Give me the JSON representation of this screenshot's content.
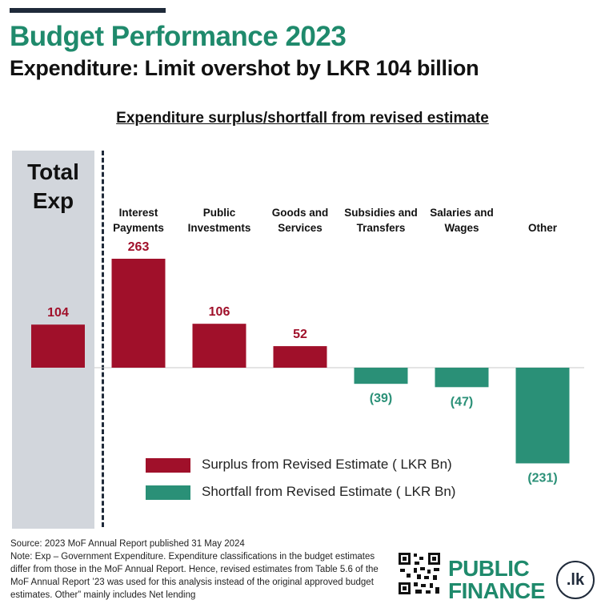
{
  "header": {
    "title": "Budget Performance 2023",
    "subtitle": "Expenditure: Limit overshot by LKR 104 billion"
  },
  "colors": {
    "title_green": "#1f8a6c",
    "surplus": "#a0102a",
    "shortfall": "#2a9077",
    "panel": "#d2d6dc",
    "dark": "#1f2a3a"
  },
  "chart_data": {
    "type": "bar",
    "title": "Expenditure surplus/shortfall from revised estimate",
    "total": {
      "label": "Total\nExp",
      "value": 104,
      "value_label": "104"
    },
    "categories": [
      "Interest\nPayments",
      "Public\nInvestments",
      "Goods and\nServices",
      "Subsidies and\nTransfers",
      "Salaries and\nWages",
      "Other"
    ],
    "values": [
      263,
      106,
      52,
      -39,
      -47,
      -231
    ],
    "value_labels": [
      "263",
      "106",
      "52",
      "(39)",
      "(47)",
      "(231)"
    ],
    "series": [
      {
        "name": "Surplus from Revised Estimate ( LKR Bn)",
        "color": "#a0102a"
      },
      {
        "name": "Shortfall from Revised Estimate  ( LKR Bn)",
        "color": "#2a9077"
      }
    ],
    "ylim": [
      -231,
      263
    ],
    "grid": false,
    "legend": "bottom-center"
  },
  "footer": {
    "source": "Source: 2023 MoF Annual Report published 31 May 2024",
    "note": "Note: Exp – Government Expenditure. Expenditure classifications in the budget estimates differ from those in the MoF Annual Report. Hence, revised estimates from Table 5.6 of the MoF Annual Report ’23 was used for this analysis instead of the original approved budget estimates. Other” mainly includes Net lending",
    "brand": "PUBLIC\nFINANCE",
    "brand_badge": ".lk"
  }
}
